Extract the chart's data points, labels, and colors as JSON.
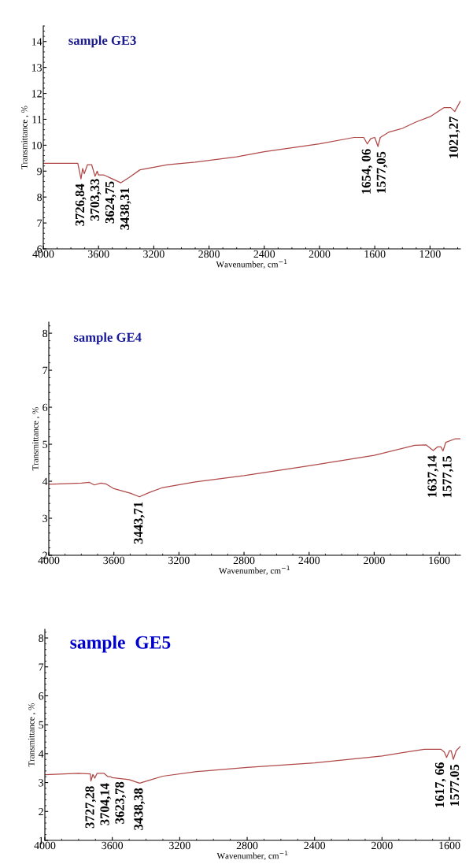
{
  "chart_data": [
    {
      "type": "line",
      "title": "sample GE3",
      "xlabel": "Wavenumber, cm$^{−1}$",
      "ylabel": "Transmittance , %",
      "x": [
        4000,
        3750,
        3727,
        3715,
        3703,
        3680,
        3650,
        3625,
        3610,
        3600,
        3560,
        3500,
        3438,
        3380,
        3300,
        3100,
        2900,
        2600,
        2400,
        2000,
        1750,
        1680,
        1654,
        1630,
        1600,
        1577,
        1560,
        1500,
        1400,
        1300,
        1200,
        1100,
        1050,
        1021,
        980
      ],
      "series": [
        {
          "color": "#b04848",
          "values": [
            9.3,
            9.3,
            8.7,
            9.1,
            8.9,
            9.25,
            9.25,
            8.8,
            9.0,
            8.85,
            8.85,
            8.7,
            8.55,
            8.75,
            9.05,
            9.25,
            9.35,
            9.55,
            9.75,
            10.05,
            10.3,
            10.3,
            10.05,
            10.25,
            10.3,
            9.95,
            10.3,
            10.5,
            10.65,
            10.9,
            11.1,
            11.45,
            11.45,
            11.3,
            11.7
          ]
        }
      ],
      "xlim": [
        4000,
        980
      ],
      "ylim": [
        6,
        14.6
      ],
      "xticks": [
        4000,
        3600,
        3200,
        2800,
        2400,
        2000,
        1600,
        1200
      ],
      "yticks": [
        6,
        7,
        8,
        9,
        10,
        11,
        12,
        13,
        14
      ],
      "annotations": [
        {
          "text": "3726,84",
          "x": 3727,
          "y": 8.7
        },
        {
          "text": "3703,33",
          "x": 3703,
          "y": 8.9
        },
        {
          "text": "3624,75",
          "x": 3625,
          "y": 8.8
        },
        {
          "text": "3438,31",
          "x": 3438,
          "y": 8.55
        },
        {
          "text": "1654, 06",
          "x": 1654,
          "y": 10.05
        },
        {
          "text": "1577,05",
          "x": 1577,
          "y": 9.95
        },
        {
          "text": "1021,27",
          "x": 1021,
          "y": 11.3
        }
      ]
    },
    {
      "type": "line",
      "title": "sample GE4",
      "xlabel": "Wavenumber, cm$^{−1}$",
      "ylabel": "Transmittance , %",
      "x": [
        4000,
        3800,
        3750,
        3720,
        3680,
        3650,
        3600,
        3500,
        3443,
        3380,
        3300,
        3100,
        2800,
        2400,
        2000,
        1750,
        1680,
        1637,
        1610,
        1590,
        1577,
        1560,
        1500,
        1470
      ],
      "series": [
        {
          "color": "#b04848",
          "values": [
            3.92,
            3.95,
            3.97,
            3.9,
            3.95,
            3.93,
            3.8,
            3.68,
            3.58,
            3.7,
            3.83,
            3.98,
            4.15,
            4.42,
            4.7,
            4.97,
            4.98,
            4.83,
            4.93,
            4.93,
            4.82,
            5.05,
            5.15,
            5.15
          ]
        }
      ],
      "xlim": [
        4000,
        1470
      ],
      "ylim": [
        2,
        8.3
      ],
      "xticks": [
        4000,
        3600,
        3200,
        2800,
        2400,
        2000,
        1600
      ],
      "yticks": [
        2,
        3,
        4,
        5,
        6,
        7,
        8
      ],
      "annotations": [
        {
          "text": "3443,71",
          "x": 3443,
          "y": 3.58
        },
        {
          "text": "1637,14",
          "x": 1637,
          "y": 4.83
        },
        {
          "text": "1577,15",
          "x": 1577,
          "y": 4.82
        }
      ]
    },
    {
      "type": "line",
      "title": "sample  GE5",
      "xlabel": "Wavenumber, cm$^{−1}$",
      "ylabel": "Transmittance , %",
      "x": [
        4000,
        3800,
        3730,
        3727,
        3715,
        3704,
        3690,
        3650,
        3625,
        3610,
        3600,
        3500,
        3438,
        3380,
        3300,
        3100,
        2800,
        2400,
        2000,
        1750,
        1650,
        1630,
        1617,
        1600,
        1590,
        1577,
        1560,
        1535
      ],
      "series": [
        {
          "color": "#b04848",
          "values": [
            3.27,
            3.32,
            3.3,
            3.05,
            3.28,
            3.15,
            3.32,
            3.32,
            3.2,
            3.2,
            3.17,
            3.1,
            2.98,
            3.08,
            3.22,
            3.38,
            3.52,
            3.68,
            3.92,
            4.15,
            4.15,
            4.05,
            3.87,
            4.1,
            4.1,
            3.8,
            4.1,
            4.25
          ]
        }
      ],
      "xlim": [
        4000,
        1535
      ],
      "ylim": [
        1,
        8.3
      ],
      "xticks": [
        4000,
        3600,
        3200,
        2800,
        2400,
        2000,
        1600
      ],
      "yticks": [
        1,
        2,
        3,
        4,
        5,
        6,
        7,
        8
      ],
      "annotations": [
        {
          "text": "3727,28",
          "x": 3727,
          "y": 3.05
        },
        {
          "text": "3704,14",
          "x": 3704,
          "y": 3.15
        },
        {
          "text": "3623,78",
          "x": 3625,
          "y": 3.2
        },
        {
          "text": "3438,38",
          "x": 3438,
          "y": 2.98
        },
        {
          "text": "1617, 66",
          "x": 1617,
          "y": 3.87
        },
        {
          "text": "1577.05",
          "x": 1577,
          "y": 3.8
        }
      ]
    }
  ]
}
